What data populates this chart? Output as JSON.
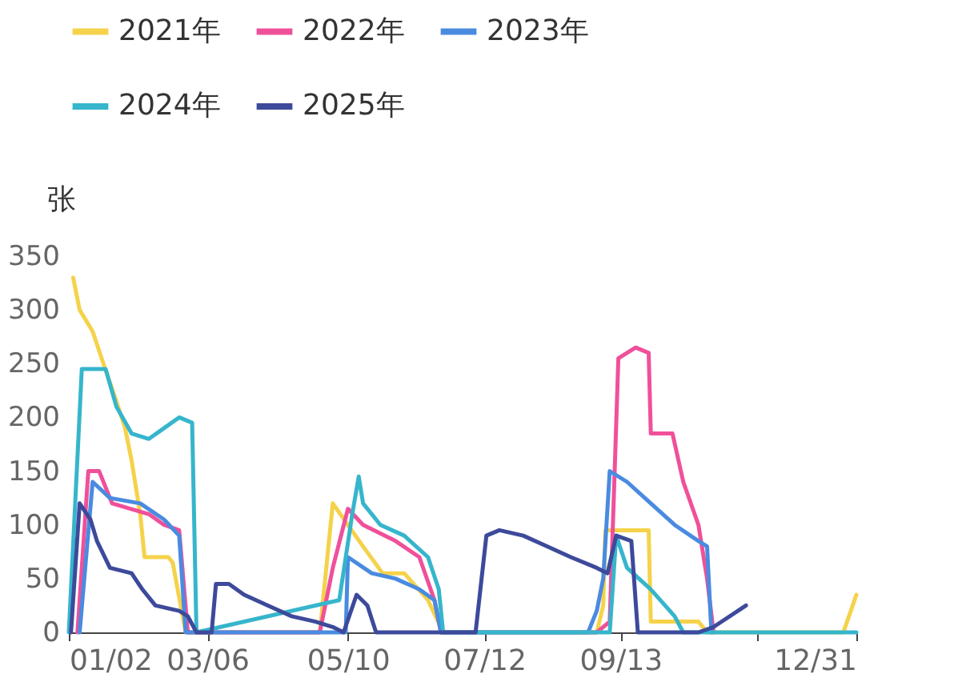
{
  "chart_data": {
    "type": "line",
    "ylabel": "张",
    "legend": "top left",
    "grid": false,
    "marker": "none",
    "line_style": "solid",
    "xlim": [
      "--01-02",
      "--12-31"
    ],
    "xticks": [
      {
        "value": "--01-02",
        "label": "01/02"
      },
      {
        "value": "--03-06",
        "label": "03/06"
      },
      {
        "value": "--05-10",
        "label": "05/10"
      },
      {
        "value": "--07-12",
        "label": "07/12"
      },
      {
        "value": "--09-13",
        "label": "09/13"
      },
      {
        "value": "--11-15",
        "label": null
      },
      {
        "value": "--12-31",
        "label": "12/31"
      }
    ],
    "ylim": [
      0,
      350
    ],
    "yticks": [
      0,
      50,
      100,
      150,
      200,
      250,
      300,
      350
    ],
    "series": [
      {
        "name": "2021年",
        "color": "#f5d24a",
        "x": [
          "--01-04",
          "--01-07",
          "--01-13",
          "--01-18",
          "--01-24",
          "--01-28",
          "--01-31",
          "--02-04",
          "--02-06",
          "--02-17",
          "--02-19",
          "--02-25",
          "--04-27",
          "--05-03",
          "--05-10",
          "--05-17",
          "--05-26",
          "--06-05",
          "--06-16",
          "--06-23",
          "--09-02",
          "--09-05",
          "--09-06",
          "--09-26",
          "--09-27",
          "--10-19",
          "--10-23",
          "--12-25",
          "--12-31"
        ],
        "values": [
          330,
          300,
          280,
          250,
          215,
          190,
          160,
          110,
          70,
          70,
          65,
          0,
          0,
          120,
          100,
          80,
          55,
          55,
          30,
          0,
          0,
          25,
          95,
          95,
          10,
          10,
          0,
          0,
          35
        ]
      },
      {
        "name": "2022年",
        "color": "#f0509a",
        "x": [
          "--01-06",
          "--01-11",
          "--01-16",
          "--01-22",
          "--02-08",
          "--02-15",
          "--02-22",
          "--02-26",
          "--04-27",
          "--05-03",
          "--05-10",
          "--05-17",
          "--06-01",
          "--06-12",
          "--06-19",
          "--06-22",
          "--09-02",
          "--09-08",
          "--09-12",
          "--09-20",
          "--09-26",
          "--09-27",
          "--10-07",
          "--10-12",
          "--10-19",
          "--10-23",
          "--10-26"
        ],
        "values": [
          0,
          150,
          150,
          120,
          110,
          100,
          95,
          0,
          0,
          60,
          115,
          100,
          85,
          70,
          30,
          0,
          0,
          10,
          255,
          265,
          260,
          185,
          185,
          140,
          100,
          50,
          0
        ]
      },
      {
        "name": "2023年",
        "color": "#4a8be0",
        "x": [
          "--01-07",
          "--01-13",
          "--01-21",
          "--02-04",
          "--02-15",
          "--02-22",
          "--02-25",
          "--05-09",
          "--05-10",
          "--05-21",
          "--06-01",
          "--06-12",
          "--06-19",
          "--06-22",
          "--08-29",
          "--09-02",
          "--09-05",
          "--09-08",
          "--09-16",
          "--09-27",
          "--10-08",
          "--10-19",
          "--10-23",
          "--10-25"
        ],
        "values": [
          0,
          140,
          125,
          120,
          105,
          90,
          0,
          0,
          70,
          55,
          50,
          40,
          30,
          0,
          0,
          20,
          50,
          150,
          140,
          120,
          100,
          85,
          80,
          0
        ]
      },
      {
        "name": "2024年",
        "color": "#36b5cc",
        "x": [
          "--01-02",
          "--01-08",
          "--01-19",
          "--01-24",
          "--01-31",
          "--02-08",
          "--02-15",
          "--02-22",
          "--02-28",
          "--03-01",
          "--05-06",
          "--05-12",
          "--05-15",
          "--05-17",
          "--05-25",
          "--06-05",
          "--06-16",
          "--06-21",
          "--06-23",
          "--09-08",
          "--09-11",
          "--09-16",
          "--09-27",
          "--10-08",
          "--10-12",
          "--12-31"
        ],
        "values": [
          0,
          245,
          245,
          210,
          185,
          180,
          190,
          200,
          195,
          0,
          30,
          110,
          145,
          120,
          100,
          90,
          70,
          40,
          0,
          0,
          90,
          60,
          40,
          15,
          0,
          0
        ]
      },
      {
        "name": "2025年",
        "color": "#3d4a9b",
        "x": [
          "--01-03",
          "--01-07",
          "--01-12",
          "--01-15",
          "--01-21",
          "--01-31",
          "--02-05",
          "--02-11",
          "--02-22",
          "--02-26",
          "--03-01",
          "--03-08",
          "--03-10",
          "--03-16",
          "--03-23",
          "--04-03",
          "--04-14",
          "--04-25",
          "--05-03",
          "--05-08",
          "--05-14",
          "--05-19",
          "--05-23",
          "--07-08",
          "--07-13",
          "--07-19",
          "--07-30",
          "--08-10",
          "--08-21",
          "--09-02",
          "--09-07",
          "--09-11",
          "--09-18",
          "--09-21",
          "--10-19",
          "--10-26",
          "--11-10"
        ],
        "values": [
          0,
          120,
          105,
          85,
          60,
          55,
          40,
          25,
          20,
          15,
          0,
          0,
          45,
          45,
          35,
          25,
          15,
          10,
          5,
          0,
          35,
          25,
          0,
          0,
          90,
          95,
          90,
          80,
          70,
          60,
          55,
          90,
          85,
          0,
          0,
          5,
          25
        ]
      }
    ]
  }
}
